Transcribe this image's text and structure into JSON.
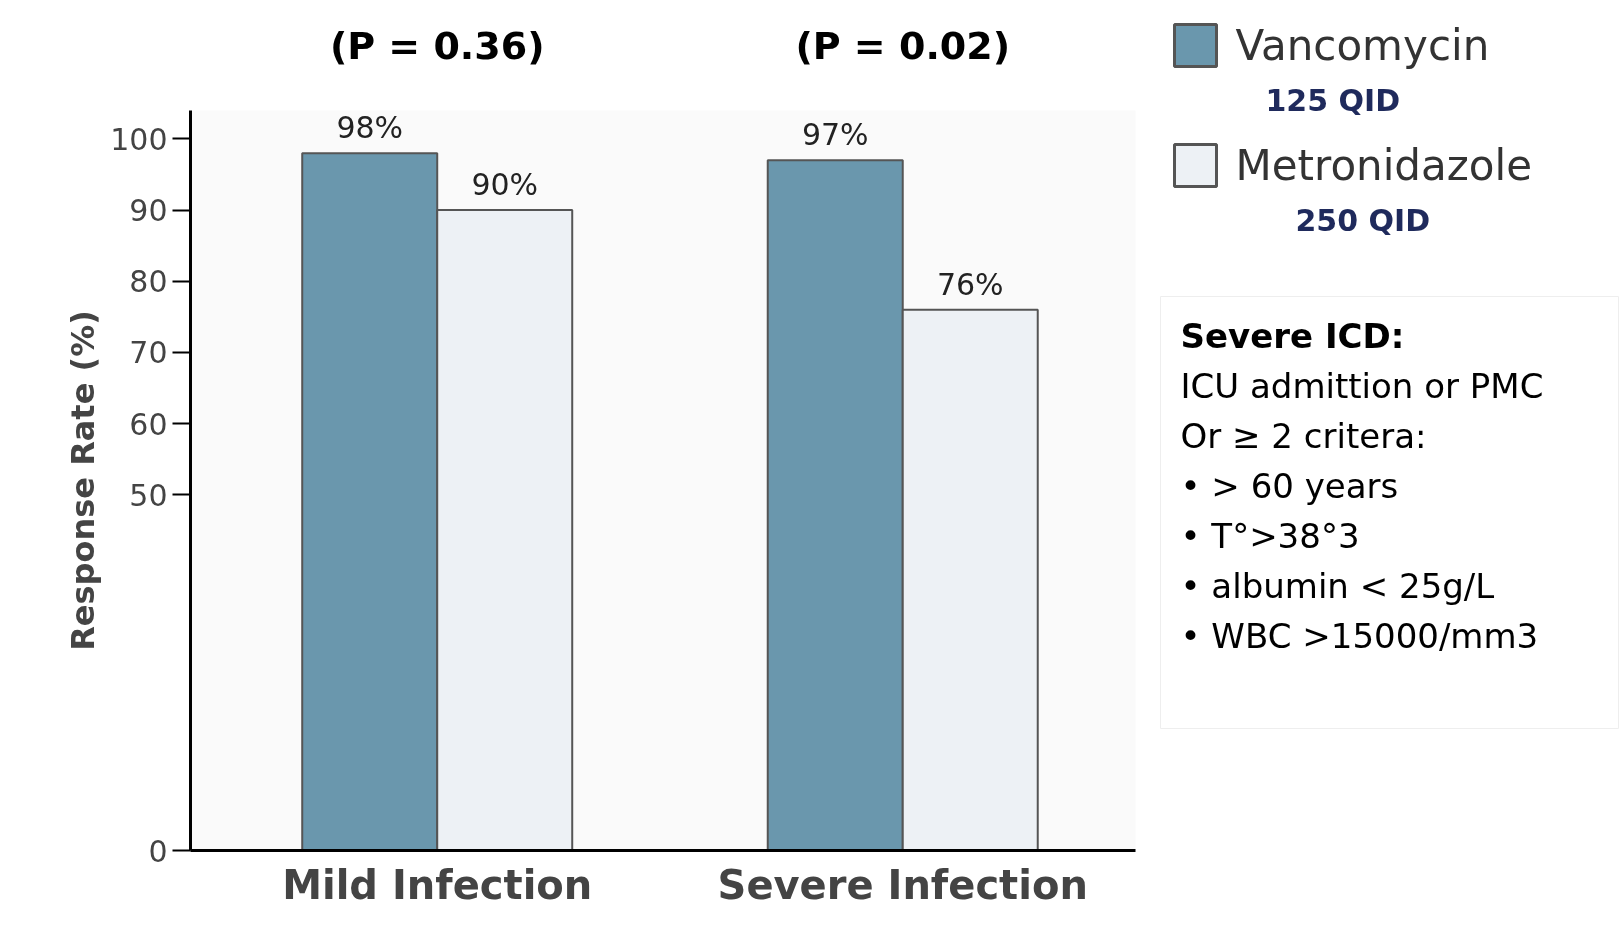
{
  "chart_data": {
    "type": "bar",
    "ylabel": "Response Rate (%)",
    "categories": [
      "Mild Infection",
      "Severe Infection"
    ],
    "series": [
      {
        "name": "Vancomycin\n125 QID",
        "color": "#6a97ad",
        "values": [
          98,
          97
        ],
        "value_labels": [
          "98%",
          "97%"
        ]
      },
      {
        "name": "Metronidazole\n250 QID",
        "color": "#edf1f5",
        "values": [
          90,
          76
        ],
        "value_labels": [
          "90%",
          "76%"
        ]
      }
    ],
    "ylim": [
      0,
      104
    ],
    "yticks": [
      0,
      50,
      60,
      70,
      80,
      90,
      100
    ],
    "grid": false,
    "legend": "right",
    "annotations": [
      "(P = 0.36)",
      "(P = 0.02)",
      "Severe ICD:",
      "ICU admittion or PMC",
      "Or  ≥ 2 critera:",
      "• > 60 years",
      "• T°>38°3",
      "• albumin < 25g/L",
      "• WBC >15000/mm3"
    ]
  }
}
